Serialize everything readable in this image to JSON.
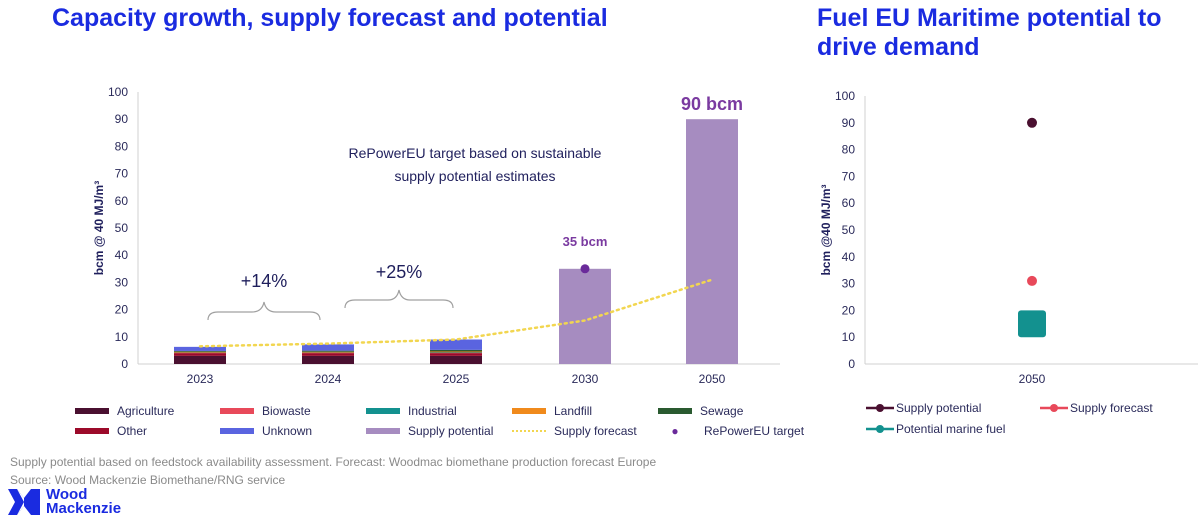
{
  "titles": {
    "left": "Capacity growth, supply forecast and potential",
    "right": "Fuel EU Maritime potential to drive demand"
  },
  "colors": {
    "title": "#1a2be0",
    "Agriculture": "#4a1030",
    "Biowaste": "#e8495a",
    "Industrial": "#13918f",
    "Landfill": "#f08a1c",
    "Sewage": "#2a5a30",
    "Other": "#9c0a2a",
    "Unknown": "#5a64e0",
    "Supply potential": "#a68cc0",
    "Supply forecast": "#f2d650",
    "RePowerEU target": "#6a2a9a",
    "marine": "#13918f",
    "supply_potential_point": "#4a1030",
    "supply_forecast_point": "#e8495a"
  },
  "chart_data": [
    {
      "type": "bar",
      "title": "Capacity growth, supply forecast and potential",
      "ylabel": "bcm @ 40 MJ/m³",
      "xlabel": "",
      "ylim": [
        0,
        100
      ],
      "yticks": [
        0,
        10,
        20,
        30,
        40,
        50,
        60,
        70,
        80,
        90,
        100
      ],
      "categories": [
        "2023",
        "2024",
        "2025",
        "2030",
        "2050"
      ],
      "stacked": true,
      "series": [
        {
          "name": "Agriculture",
          "values": [
            3.0,
            3.0,
            3.0,
            0,
            0
          ]
        },
        {
          "name": "Other",
          "values": [
            1.0,
            1.0,
            1.0,
            0,
            0
          ]
        },
        {
          "name": "Biowaste",
          "values": [
            0.3,
            0.3,
            0.3,
            0,
            0
          ]
        },
        {
          "name": "Industrial",
          "values": [
            0.1,
            0.1,
            0.1,
            0,
            0
          ]
        },
        {
          "name": "Landfill",
          "values": [
            0.1,
            0.1,
            0.2,
            0,
            0
          ]
        },
        {
          "name": "Sewage",
          "values": [
            0.3,
            0.4,
            0.6,
            0,
            0
          ]
        },
        {
          "name": "Unknown",
          "values": [
            1.5,
            2.3,
            3.8,
            0,
            0
          ]
        },
        {
          "name": "Supply potential",
          "values": [
            0,
            0,
            0,
            35,
            90
          ]
        }
      ],
      "lines": [
        {
          "name": "Supply forecast",
          "style": "dotted",
          "values": [
            6.5,
            7.5,
            9.0,
            16.0,
            31.0
          ]
        }
      ],
      "points": [
        {
          "name": "RePowerEU target",
          "category": "2030",
          "value": 35
        }
      ],
      "annotations": [
        {
          "text": "RePowerEU target based on sustainable",
          "text2": "supply potential estimates"
        },
        {
          "text": "+14%",
          "from": "2023",
          "to": "2024"
        },
        {
          "text": "+25%",
          "from": "2024",
          "to": "2025"
        },
        {
          "text": "35 bcm",
          "category": "2030"
        },
        {
          "text": "90 bcm",
          "category": "2050"
        }
      ],
      "legend": {
        "placement": "bottom",
        "items": [
          "Agriculture",
          "Biowaste",
          "Industrial",
          "Landfill",
          "Sewage",
          "Other",
          "Unknown",
          "Supply potential",
          "Supply forecast",
          "RePowerEU target"
        ]
      }
    },
    {
      "type": "scatter",
      "title": "Fuel EU Maritime potential to drive demand",
      "ylabel": "bcm @40 MJ/m³",
      "xlabel": "",
      "ylim": [
        0,
        100
      ],
      "yticks": [
        0,
        10,
        20,
        30,
        40,
        50,
        60,
        70,
        80,
        90,
        100
      ],
      "categories": [
        "2050"
      ],
      "series": [
        {
          "name": "Supply potential",
          "values": [
            90
          ]
        },
        {
          "name": "Supply forecast",
          "values": [
            31
          ]
        },
        {
          "name": "Potential marine fuel",
          "range": [
            10,
            20
          ]
        }
      ],
      "legend": {
        "placement": "bottom",
        "items": [
          "Supply potential",
          "Supply forecast",
          "Potential marine fuel"
        ]
      }
    }
  ],
  "footer": {
    "note": "Supply potential based on feedstock availability assessment. Forecast: Woodmac biomethane production forecast Europe",
    "source": "Source: Wood Mackenzie Biomethane/RNG service",
    "logo_line1": "Wood",
    "logo_line2": "Mackenzie"
  }
}
